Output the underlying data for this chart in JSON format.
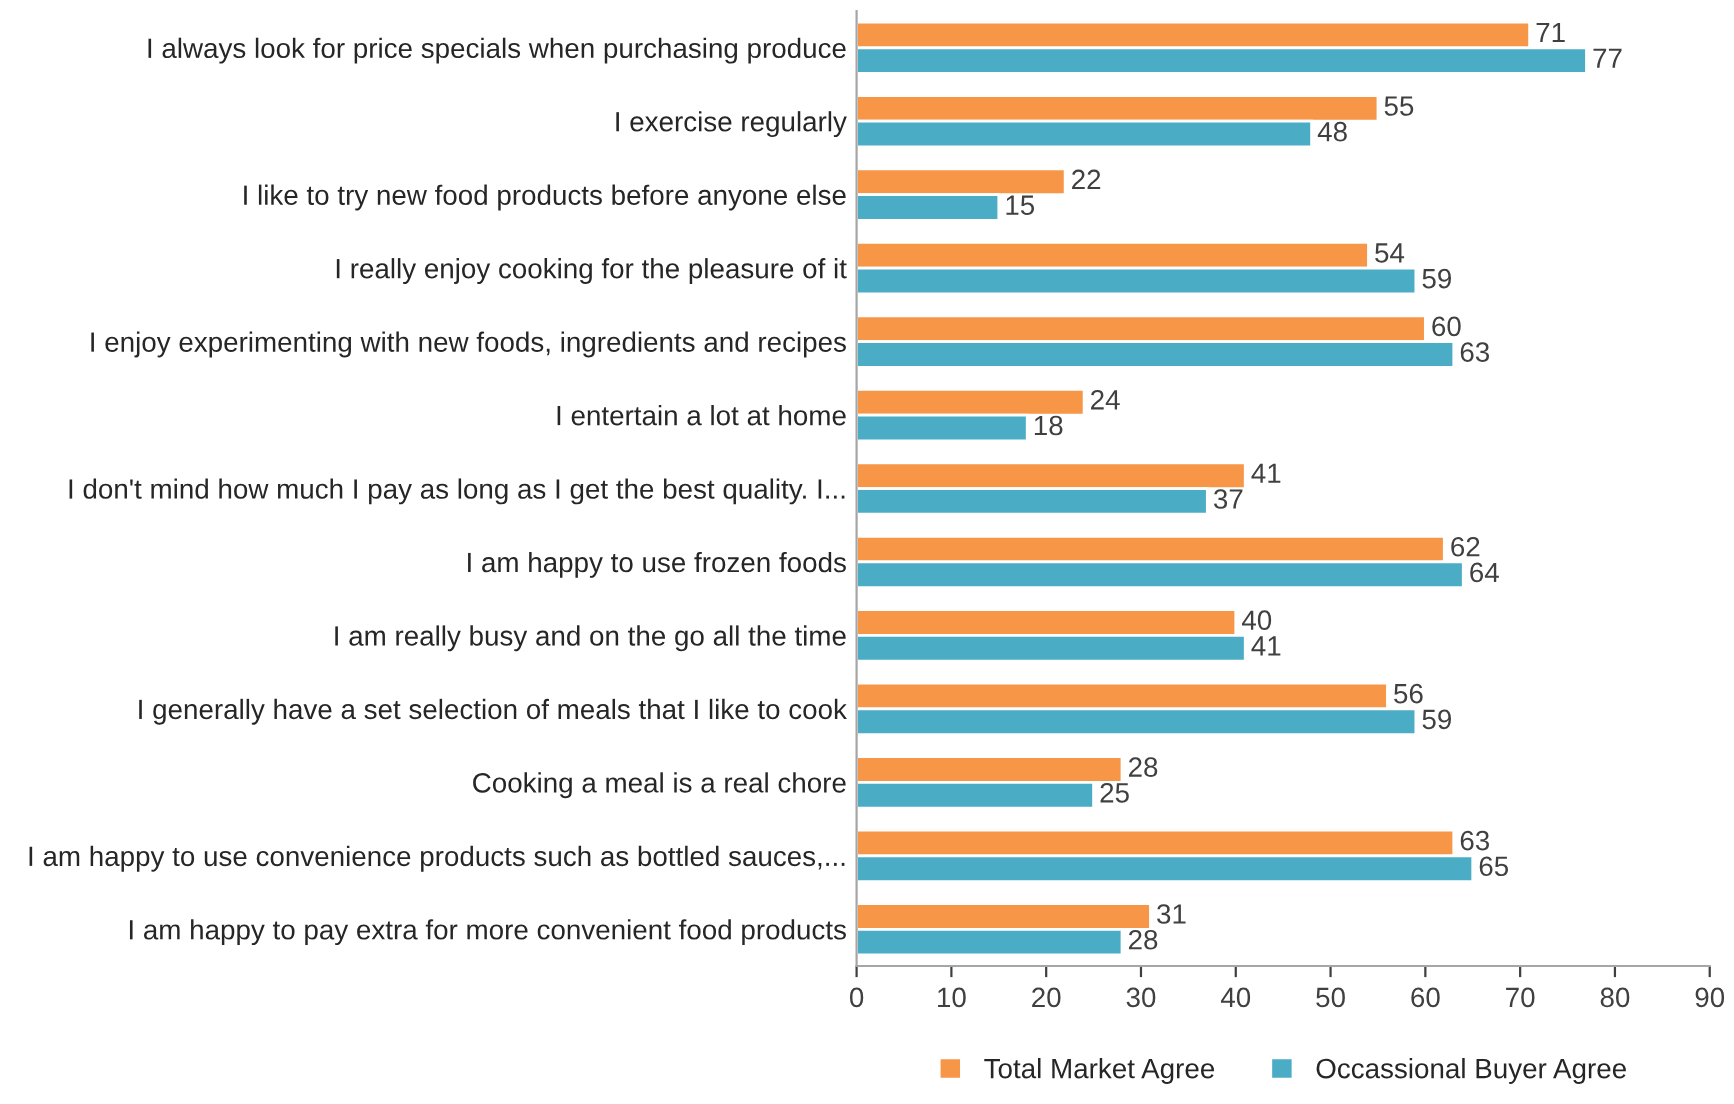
{
  "chart_data": {
    "type": "bar",
    "orientation": "horizontal",
    "categories": [
      "I always look for price specials when purchasing produce",
      "I exercise regularly",
      "I like to try new food products before anyone else",
      "I really enjoy cooking for the pleasure of it",
      "I enjoy experimenting with new foods, ingredients and recipes",
      "I entertain a lot at home",
      "I don't mind how much I pay as long as I get the best quality. I...",
      "I am happy to use frozen foods",
      "I am really busy and on the go all the time",
      "I generally have a set selection of meals that I like to cook",
      "Cooking a meal is a real chore",
      "I am happy to use convenience products such as bottled sauces,...",
      "I am happy to pay extra for more convenient food products"
    ],
    "series": [
      {
        "name": "Total Market Agree",
        "color": "#f79646",
        "values": [
          71,
          55,
          22,
          54,
          60,
          24,
          41,
          62,
          40,
          56,
          28,
          63,
          31
        ]
      },
      {
        "name": "Occassional Buyer Agree",
        "color": "#4bacc6",
        "values": [
          77,
          48,
          15,
          59,
          63,
          18,
          37,
          64,
          41,
          59,
          25,
          65,
          28
        ]
      }
    ],
    "xlim": [
      0,
      90
    ],
    "xticks": [
      0,
      10,
      20,
      30,
      40,
      50,
      60,
      70,
      80,
      90
    ],
    "data_labels": true,
    "grid": false,
    "legend": "bottom"
  }
}
